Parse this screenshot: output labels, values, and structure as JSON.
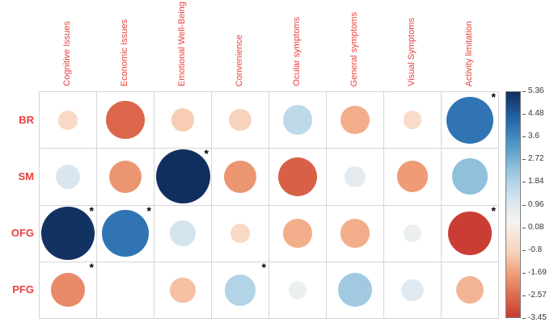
{
  "style": {
    "accent_label_color": "#e8403d",
    "grid_line_color": "#d6d6d6",
    "tick_label_color": "#333333",
    "background_color": "#ffffff"
  },
  "chart_data": {
    "type": "heatmap",
    "subtype": "correlation-bubble-matrix",
    "title": "",
    "rows": [
      "BR",
      "SM",
      "OFG",
      "PFG"
    ],
    "columns": [
      "Cognitive Issues",
      "Economic Issues",
      "Emotional Well-Being",
      "Convenience",
      "Ocular symptoms",
      "General symptoms",
      "Visual Symptoms",
      "Activity limitation"
    ],
    "values": [
      [
        -0.7,
        -2.7,
        -1.0,
        -0.9,
        1.6,
        -1.5,
        -0.6,
        4.0
      ],
      [
        1.1,
        -1.9,
        5.36,
        -1.9,
        -2.8,
        0.8,
        -1.8,
        2.4
      ],
      [
        5.3,
        4.0,
        1.2,
        -0.7,
        -1.5,
        -1.5,
        0.6,
        -3.4
      ],
      [
        -2.1,
        null,
        -1.2,
        1.8,
        0.6,
        2.1,
        0.9,
        -1.4
      ]
    ],
    "significance": [
      [
        false,
        false,
        false,
        false,
        false,
        false,
        false,
        true
      ],
      [
        false,
        false,
        true,
        false,
        false,
        false,
        false,
        false
      ],
      [
        true,
        true,
        false,
        false,
        false,
        false,
        false,
        true
      ],
      [
        true,
        false,
        false,
        true,
        false,
        false,
        false,
        false
      ]
    ],
    "significance_marker": "*",
    "value_range": [
      -3.45,
      5.36
    ],
    "legend_position": "right",
    "legend_ticks": [
      "5.36",
      "4.48",
      "3.6",
      "2.72",
      "1.84",
      "0.96",
      "0.08",
      "-0.8",
      "-1.69",
      "-2.57",
      "-3.45"
    ],
    "colormap_stops": [
      [
        -3.45,
        "#c93a32"
      ],
      [
        -2.6,
        "#dd6c4e"
      ],
      [
        -1.7,
        "#f0a17b"
      ],
      [
        -0.9,
        "#f8d3bc"
      ],
      [
        0.3,
        "#f8f4f0"
      ],
      [
        1.3,
        "#cfe2ef"
      ],
      [
        2.3,
        "#96c4de"
      ],
      [
        3.3,
        "#4f98c7"
      ],
      [
        4.3,
        "#2465ab"
      ],
      [
        5.36,
        "#112f5e"
      ]
    ],
    "grid": true
  }
}
